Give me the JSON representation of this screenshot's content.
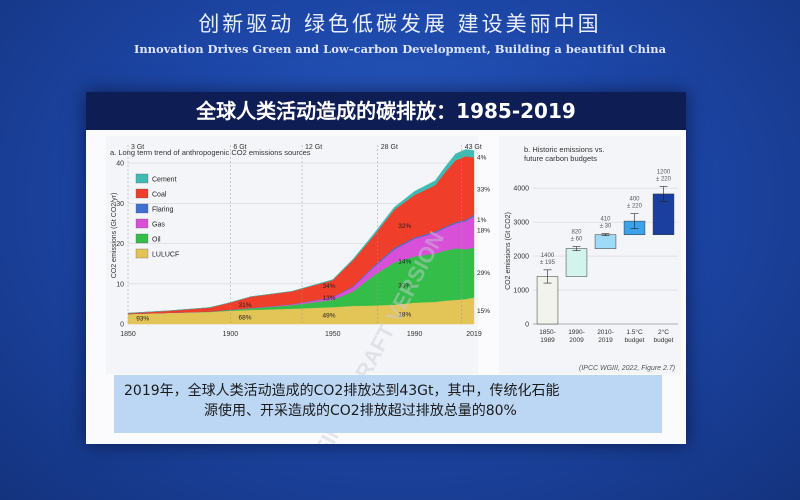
{
  "banner": {
    "title_cn": "创新驱动  绿色低碳发展  建设美丽中国",
    "title_en": "Innovation Drives Green and Low-carbon Development, Building a beautiful China"
  },
  "slide": {
    "title": "全球人类活动造成的碳排放：1985-2019",
    "caption_line1": "2019年，全球人类活动造成的CO2排放达到43Gt，其中，传统化石能",
    "caption_line2": "源使用、开采造成的CO2排放超过排放总量的80%",
    "source": "(IPCC WGIII, 2022, Figure 2.7)",
    "watermark": "FINAL DRAFT VERSION",
    "colors": {
      "title_bg": "#0f1d55",
      "caption_bg": "#bcd7f4"
    }
  },
  "chart_data": [
    {
      "type": "area",
      "title": "a. Long term trend of anthropogenic CO2 emissions sources",
      "ylabel": "CO2 emissions (Gt CO2/yr)",
      "xlabel": "",
      "xlim": [
        1850,
        2019
      ],
      "ylim": [
        0,
        44
      ],
      "x_ticks": [
        1850,
        1900,
        1950,
        1990,
        2019
      ],
      "y_ticks": [
        0,
        10,
        20,
        30,
        40
      ],
      "x": [
        1850,
        1870,
        1890,
        1900,
        1910,
        1930,
        1950,
        1960,
        1970,
        1980,
        1990,
        2000,
        2005,
        2010,
        2015,
        2019
      ],
      "series": [
        {
          "name": "LULUCF",
          "color": "#e3c457",
          "values": [
            2.5,
            2.8,
            3.0,
            3.3,
            3.5,
            3.8,
            4.2,
            4.5,
            4.6,
            4.8,
            5.3,
            5.5,
            5.8,
            6.0,
            6.2,
            6.6
          ]
        },
        {
          "name": "Oil",
          "color": "#35bd4a",
          "values": [
            0,
            0,
            0.1,
            0.2,
            0.4,
            0.9,
            1.8,
            3.6,
            7.5,
            10.5,
            11.5,
            12.0,
            12.5,
            12.8,
            12.4,
            12.4
          ]
        },
        {
          "name": "Gas",
          "color": "#d84fd8",
          "values": [
            0,
            0,
            0,
            0.05,
            0.1,
            0.2,
            0.6,
            1.1,
            2.0,
            3.2,
            4.4,
            5.2,
            5.6,
            6.2,
            7.0,
            7.8
          ]
        },
        {
          "name": "Flaring",
          "color": "#3f6fd1",
          "values": [
            0,
            0,
            0,
            0,
            0,
            0,
            0.1,
            0.2,
            0.3,
            0.4,
            0.3,
            0.3,
            0.3,
            0.3,
            0.3,
            0.4
          ]
        },
        {
          "name": "Coal",
          "color": "#ef3f2a",
          "values": [
            0.2,
            0.5,
            1.0,
            1.8,
            2.8,
            3.2,
            4.2,
            6.5,
            7.5,
            9.5,
            10.6,
            11.5,
            13.6,
            15.4,
            15.8,
            14.2
          ]
        },
        {
          "name": "Cement",
          "color": "#3fbbb2",
          "values": [
            0,
            0,
            0,
            0,
            0,
            0.05,
            0.15,
            0.3,
            0.5,
            0.6,
            0.9,
            1.1,
            1.3,
            1.6,
            1.7,
            1.7
          ]
        }
      ],
      "top_labels": [
        {
          "x": 1850,
          "text": "3 Gt"
        },
        {
          "x": 1900,
          "text": "6 Gt"
        },
        {
          "x": 1935,
          "text": "12 Gt"
        },
        {
          "x": 1972,
          "text": "28 Gt"
        },
        {
          "x": 2013,
          "text": "43 Gt"
        }
      ],
      "share_labels": [
        {
          "x": 1854,
          "y": 1.5,
          "text": "93%"
        },
        {
          "x": 1904,
          "y": 1.8,
          "text": "68%"
        },
        {
          "x": 1904,
          "y": 4.9,
          "text": "31%"
        },
        {
          "x": 1945,
          "y": 2.2,
          "text": "49%"
        },
        {
          "x": 1945,
          "y": 6.6,
          "text": "13%"
        },
        {
          "x": 1945,
          "y": 9.6,
          "text": "34%"
        },
        {
          "x": 1982,
          "y": 2.5,
          "text": "18%"
        },
        {
          "x": 1982,
          "y": 9.7,
          "text": "33%"
        },
        {
          "x": 1982,
          "y": 15.7,
          "text": "14%"
        },
        {
          "x": 1982,
          "y": 24.5,
          "text": "32%"
        }
      ],
      "right_labels": [
        {
          "y": 41.5,
          "text": "4%"
        },
        {
          "y": 33.5,
          "text": "33%"
        },
        {
          "y": 26.0,
          "text": "1%"
        },
        {
          "y": 23.4,
          "text": "18%"
        },
        {
          "y": 12.8,
          "text": "29%"
        },
        {
          "y": 3.3,
          "text": "15%"
        }
      ]
    },
    {
      "type": "box",
      "title": "b. Historic emissions vs. future carbon budgets",
      "ylabel": "CO2 emissions (Gt CO2)",
      "ylim": [
        0,
        4300
      ],
      "y_ticks": [
        0,
        1000,
        2000,
        3000,
        4000
      ],
      "categories": [
        "1850-\n1989",
        "1990-\n2009",
        "2010-\n2019",
        "1.5°C\nbudget",
        "2°C\nbudget"
      ],
      "values": [
        1400,
        820,
        410,
        400,
        1200
      ],
      "bases": [
        1400,
        1400,
        2220,
        2630,
        2630
      ],
      "errors": [
        195,
        60,
        30,
        220,
        220
      ],
      "value_labels": [
        "1400\n± 195",
        "820\n± 60",
        "410\n± 30",
        "400\n± 220",
        "1200\n± 220"
      ],
      "colors": [
        "#f2f3ec",
        "#d3f4ed",
        "#9fdbf6",
        "#3ea2ea",
        "#1a3f9e"
      ]
    }
  ]
}
